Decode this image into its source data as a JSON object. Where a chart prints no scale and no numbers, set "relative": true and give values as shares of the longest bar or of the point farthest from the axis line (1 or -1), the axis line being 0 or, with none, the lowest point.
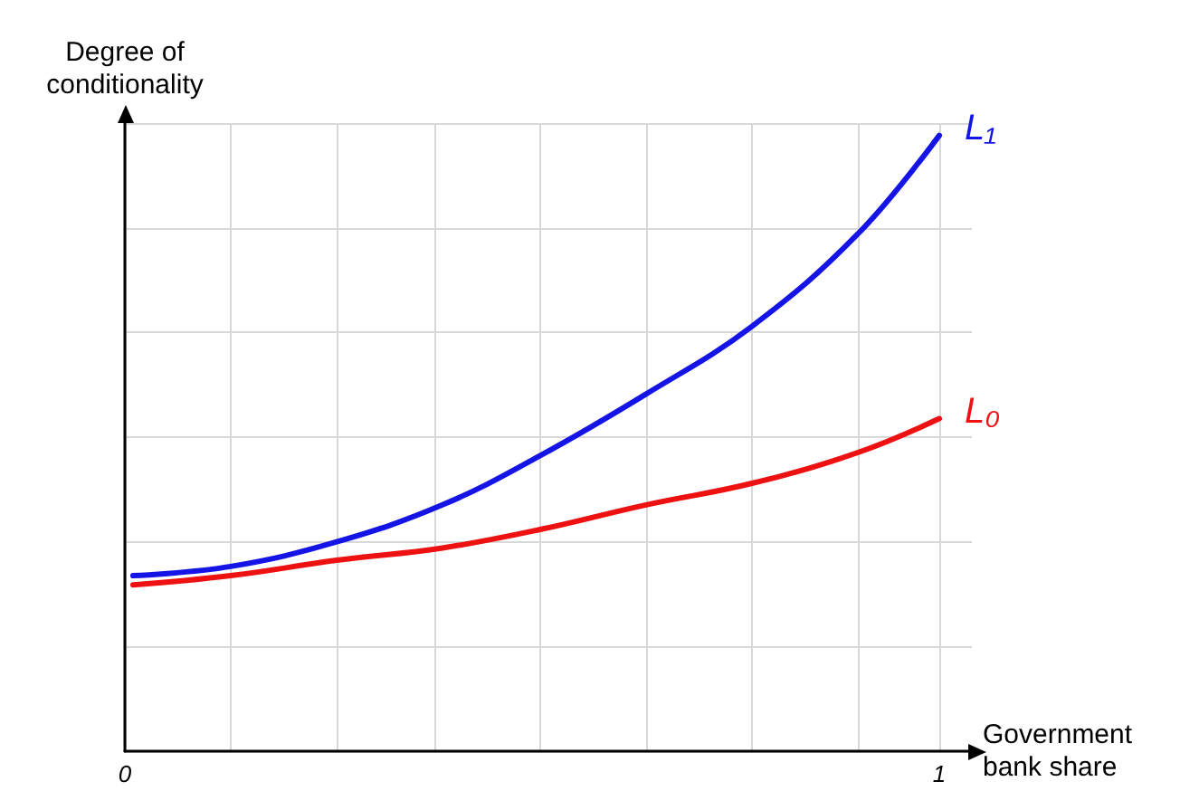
{
  "chart_data": {
    "type": "line",
    "relative": true,
    "xlabel": "Government bank share",
    "ylabel": "Degree of conditionality",
    "xlim": [
      0,
      1.04
    ],
    "xticks": [
      0,
      {
        "value": 0.13,
        "label": null
      },
      {
        "value": 0.26,
        "label": null
      },
      {
        "value": 0.38,
        "label": null
      },
      {
        "value": 0.51,
        "label": null
      },
      {
        "value": 0.64,
        "label": null
      },
      {
        "value": 0.77,
        "label": null
      },
      {
        "value": 0.9,
        "label": null
      },
      1
    ],
    "x": [
      0.01,
      0.13,
      0.26,
      0.39,
      0.51,
      0.64,
      0.77,
      0.9,
      1.0
    ],
    "series": [
      {
        "name": "L₁",
        "color": "#1414e6",
        "values": [
          0.285,
          0.3,
          0.34,
          0.4,
          0.48,
          0.58,
          0.69,
          0.84,
          1.0
        ]
      },
      {
        "name": "L₀",
        "color": "#ee1111",
        "values": [
          0.27,
          0.285,
          0.31,
          0.33,
          0.36,
          0.4,
          0.435,
          0.485,
          0.54
        ]
      }
    ],
    "grid": true,
    "legend": false,
    "marker": "none",
    "line_style": "solid"
  }
}
